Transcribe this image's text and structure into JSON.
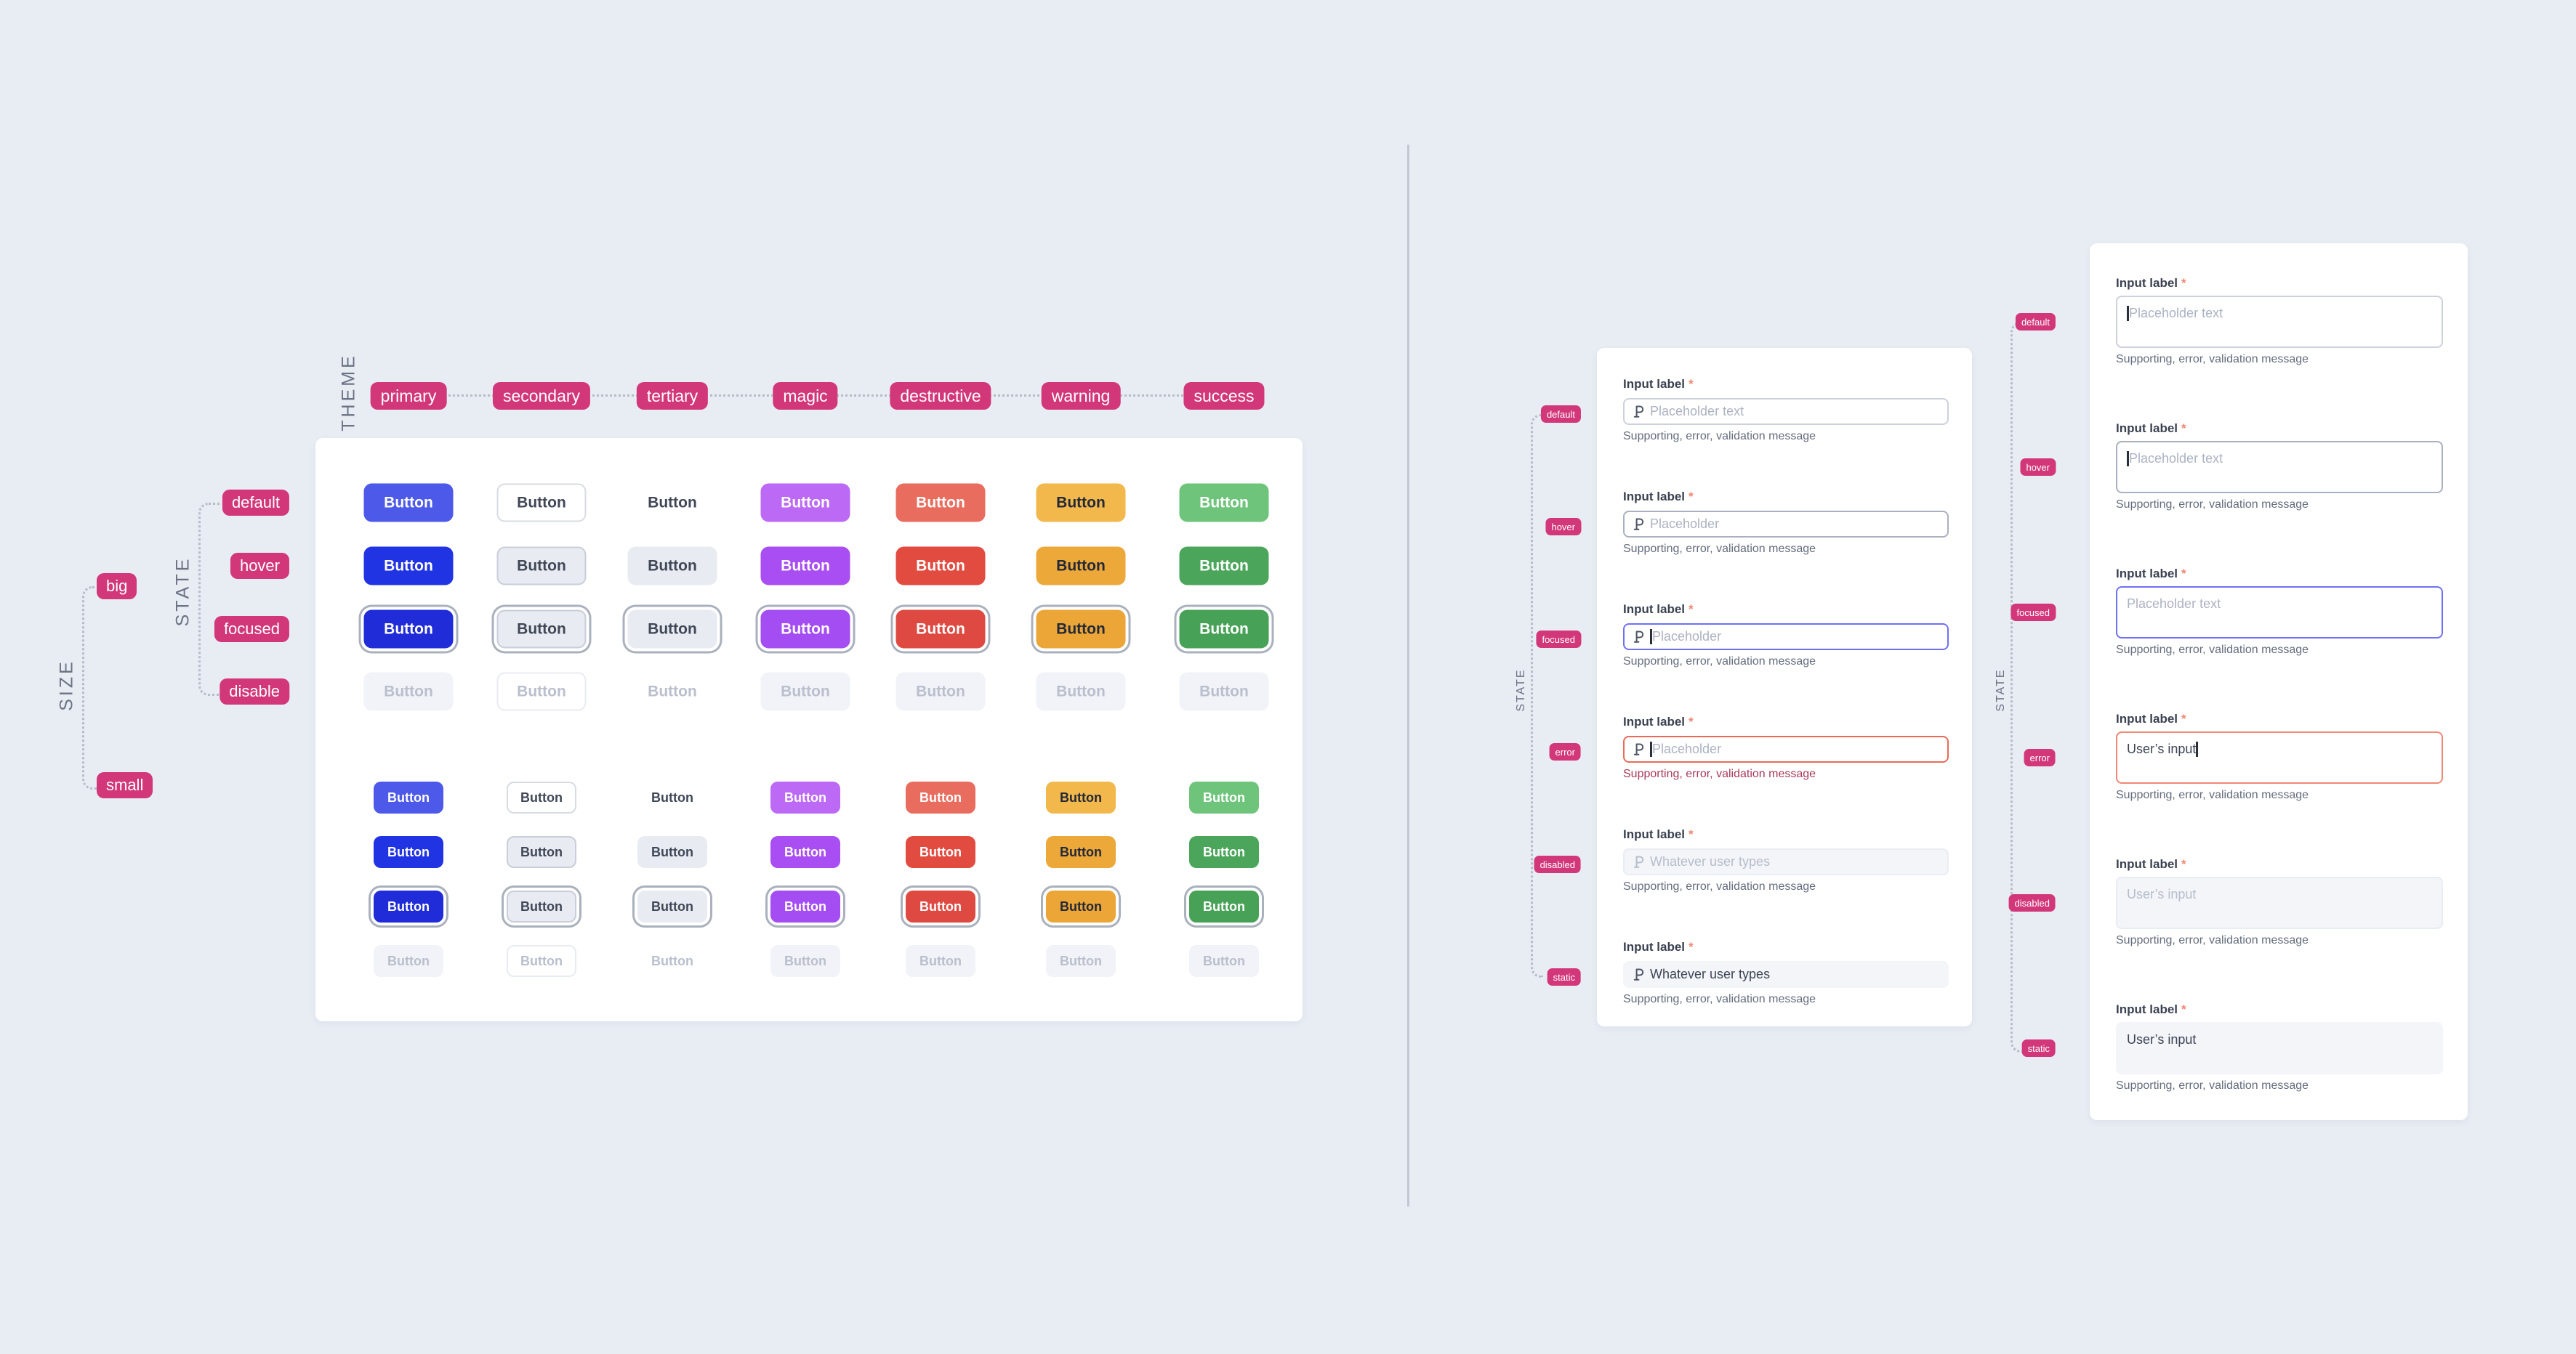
{
  "colors": {
    "page_bg": "#e8ecf3",
    "card_bg": "#ffffff",
    "badge_pink": "#d23779",
    "divider": "#c3c7d1",
    "dotted_line": "#b6bcc8",
    "axis_label": "#6b7284",
    "focus_ring": "#aab1bd",
    "error_caption": "#a73a5b"
  },
  "axes": {
    "theme": "THEME",
    "state": "STATE",
    "size": "SIZE"
  },
  "themes": [
    {
      "id": "primary",
      "label": "primary"
    },
    {
      "id": "secondary",
      "label": "secondary"
    },
    {
      "id": "tertiary",
      "label": "tertiary"
    },
    {
      "id": "magic",
      "label": "magic"
    },
    {
      "id": "destructive",
      "label": "destructive"
    },
    {
      "id": "warning",
      "label": "warning"
    },
    {
      "id": "success",
      "label": "success"
    }
  ],
  "button_matrix": {
    "button_label": "Button",
    "sizes": [
      {
        "id": "big",
        "label": "big"
      },
      {
        "id": "small",
        "label": "small"
      }
    ],
    "states": [
      {
        "id": "default",
        "label": "default"
      },
      {
        "id": "hover",
        "label": "hover"
      },
      {
        "id": "focused",
        "label": "focused"
      },
      {
        "id": "disable",
        "label": "disable"
      }
    ],
    "styles": {
      "primary": {
        "default": {
          "bg": "#4d59e9",
          "tx": "#ffffff"
        },
        "hover": {
          "bg": "#2134e4",
          "tx": "#ffffff"
        },
        "focused": {
          "bg": "#1f2cd8",
          "tx": "#ffffff"
        }
      },
      "secondary": {
        "default": {
          "bg": "#ffffff",
          "tx": "#404757",
          "bd": "#d8dbe3"
        },
        "hover": {
          "bg": "#e8ebf1",
          "tx": "#404757",
          "bd": "#c9ced9"
        },
        "focused": {
          "bg": "#e8ebf1",
          "tx": "#404757",
          "bd": "#c9ced9"
        }
      },
      "tertiary": {
        "default": {
          "bg": "transparent",
          "tx": "#404757"
        },
        "hover": {
          "bg": "#e8ebf1",
          "tx": "#404757"
        },
        "focused": {
          "bg": "#e8ebf1",
          "tx": "#404757"
        }
      },
      "magic": {
        "default": {
          "bg": "#bc69f5",
          "tx": "#ffffff"
        },
        "hover": {
          "bg": "#a84ef2",
          "tx": "#ffffff"
        },
        "focused": {
          "bg": "#a34df2",
          "tx": "#ffffff"
        }
      },
      "destructive": {
        "default": {
          "bg": "#e96d5f",
          "tx": "#ffffff"
        },
        "hover": {
          "bg": "#e14b40",
          "tx": "#ffffff"
        },
        "focused": {
          "bg": "#de4a41",
          "tx": "#ffffff"
        }
      },
      "warning": {
        "default": {
          "bg": "#f2b84b",
          "tx": "#232938"
        },
        "hover": {
          "bg": "#eda83a",
          "tx": "#232938"
        },
        "focused": {
          "bg": "#eba637",
          "tx": "#232938"
        }
      },
      "success": {
        "default": {
          "bg": "#6ec47b",
          "tx": "#ffffff"
        },
        "hover": {
          "bg": "#4ba65b",
          "tx": "#ffffff"
        },
        "focused": {
          "bg": "#47a156",
          "tx": "#ffffff"
        }
      },
      "disable": {
        "bg": "#f2f3f8",
        "tx": "#babfcd",
        "secondary_bg": "#ffffff",
        "secondary_bd": "#e9ebf2",
        "tertiary_bg": "transparent"
      }
    }
  },
  "inputs": {
    "label": "Input label",
    "required_mark": "*",
    "supporting": "Supporting, error, validation message",
    "states": [
      {
        "id": "default",
        "label": "default"
      },
      {
        "id": "hover",
        "label": "hover"
      },
      {
        "id": "focused",
        "label": "focused"
      },
      {
        "id": "error",
        "label": "error"
      },
      {
        "id": "disabled",
        "label": "disabled"
      },
      {
        "id": "static",
        "label": "static"
      }
    ],
    "icon": "paragraph-mark-icon",
    "text_field": {
      "default": {
        "placeholder": "Placeholder text"
      },
      "hover": {
        "placeholder": "Placeholder"
      },
      "focused": {
        "placeholder": "Placeholder",
        "caret": "start"
      },
      "error": {
        "placeholder": "Placeholder",
        "caret": "start",
        "error_caption": true
      },
      "disabled": {
        "value": "Whatever user types",
        "muted": true
      },
      "static": {
        "value": "Whatever user types"
      }
    },
    "textarea": {
      "default": {
        "placeholder": "Placeholder text",
        "caret": "start"
      },
      "hover": {
        "placeholder": "Placeholder text",
        "caret": "start"
      },
      "focused": {
        "placeholder": "Placeholder text"
      },
      "error": {
        "value": "User’s input",
        "caret": "end"
      },
      "disabled": {
        "value": "User’s input",
        "muted": true
      },
      "static": {
        "value": "User’s input"
      }
    }
  }
}
